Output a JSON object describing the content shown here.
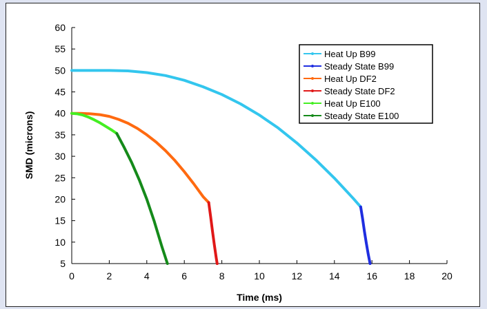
{
  "chart_data": {
    "type": "line",
    "title": "",
    "xlabel": "Time (ms)",
    "ylabel": "SMD (microns)",
    "xlim": [
      0,
      20
    ],
    "ylim": [
      5,
      60
    ],
    "xticks": [
      0,
      2,
      4,
      6,
      8,
      10,
      12,
      14,
      16,
      18,
      20
    ],
    "yticks": [
      5,
      10,
      15,
      20,
      25,
      30,
      35,
      40,
      45,
      50,
      55,
      60
    ],
    "grid": false,
    "legend_position": "top-right",
    "series": [
      {
        "name": "Heat Up B99",
        "color": "#33c6ee",
        "x": [
          0,
          1,
          2,
          3,
          4,
          5,
          6,
          7,
          8,
          9,
          10,
          11,
          12,
          13,
          14,
          15,
          15.4
        ],
        "y": [
          50,
          50,
          50,
          49.9,
          49.5,
          48.8,
          47.7,
          46.2,
          44.4,
          42.2,
          39.6,
          36.6,
          33.1,
          29.2,
          24.9,
          20.2,
          18.2
        ]
      },
      {
        "name": "Steady State B99",
        "color": "#1f2ee0",
        "x": [
          15.4,
          15.5,
          15.6,
          15.7,
          15.8,
          15.9
        ],
        "y": [
          18.2,
          15.5,
          12.5,
          9.8,
          7.2,
          5
        ]
      },
      {
        "name": "Heat Up DF2",
        "color": "#ff6a10",
        "x": [
          0,
          0.5,
          1,
          1.5,
          2,
          2.5,
          3,
          3.5,
          4,
          4.5,
          5,
          5.5,
          6,
          6.5,
          7,
          7.3
        ],
        "y": [
          40,
          40,
          39.9,
          39.7,
          39.3,
          38.6,
          37.7,
          36.5,
          35,
          33.3,
          31.3,
          29,
          26.4,
          23.6,
          20.6,
          19.2
        ]
      },
      {
        "name": "Steady State DF2",
        "color": "#e01818",
        "x": [
          7.3,
          7.4,
          7.5,
          7.6,
          7.7,
          7.75
        ],
        "y": [
          19.2,
          16,
          12.6,
          9.4,
          6.4,
          5
        ]
      },
      {
        "name": "Heat Up E100",
        "color": "#44ee22",
        "x": [
          0,
          0.3,
          0.6,
          0.9,
          1.2,
          1.5,
          1.8,
          2.1,
          2.4
        ],
        "y": [
          40,
          39.9,
          39.6,
          39.1,
          38.5,
          37.8,
          37,
          36.2,
          35.3
        ]
      },
      {
        "name": "Steady State E100",
        "color": "#158a1a",
        "x": [
          2.4,
          2.8,
          3.2,
          3.6,
          4,
          4.4,
          4.8,
          5.1
        ],
        "y": [
          35.3,
          32,
          28.5,
          24.5,
          20,
          14.8,
          9,
          5
        ]
      }
    ]
  }
}
